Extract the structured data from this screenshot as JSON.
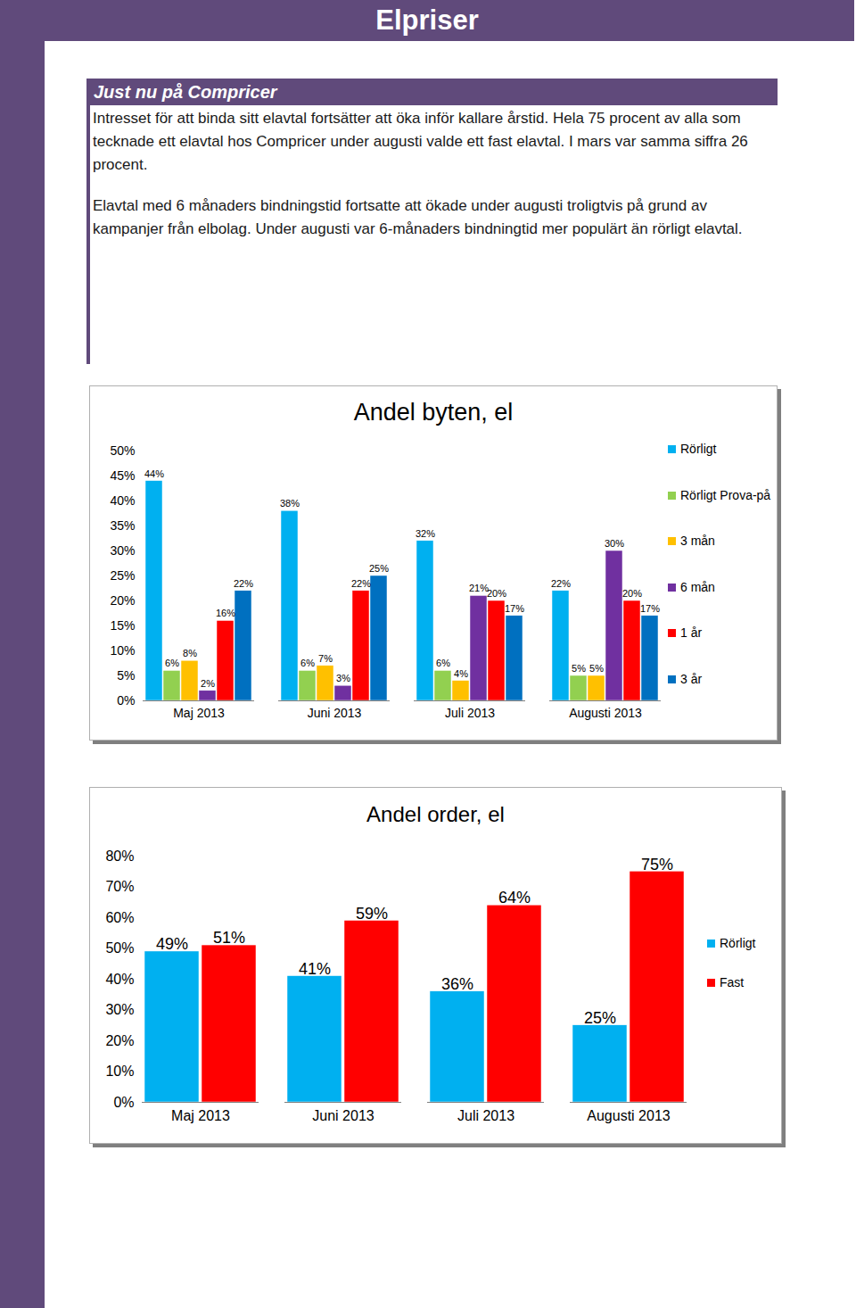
{
  "header": {
    "title": "Elpriser"
  },
  "section": {
    "title": "Just nu på Compricer",
    "paragraphs": [
      "Intresset för att binda sitt elavtal fortsätter att öka inför kallare årstid. Hela 75 procent av alla som tecknade ett elavtal hos Compricer under augusti valde ett fast elavtal. I mars var samma siffra 26 procent.",
      "Elavtal med 6 månaders bindningstid fortsatte att ökade under augusti troligtvis på grund av kampanjer från elbolag. Under augusti var 6-månaders bindningtid mer populärt än rörligt elavtal."
    ]
  },
  "chart_data": [
    {
      "type": "bar",
      "title": "Andel byten, el",
      "categories": [
        "Maj 2013",
        "Juni 2013",
        "Juli 2013",
        "Augusti 2013"
      ],
      "series": [
        {
          "name": "Rörligt",
          "color": "#00b0f0",
          "values": [
            44,
            38,
            32,
            22
          ],
          "value_labels": [
            "44%",
            "38%",
            "32%",
            "22%"
          ]
        },
        {
          "name": "Rörligt Prova-på",
          "color": "#92d050",
          "values": [
            6,
            6,
            6,
            5
          ],
          "value_labels": [
            "6%",
            "6%",
            "6%",
            "5%"
          ]
        },
        {
          "name": "3 mån",
          "color": "#ffc000",
          "values": [
            8,
            7,
            4,
            5
          ],
          "value_labels": [
            "8%",
            "7%",
            "4%",
            "5%"
          ]
        },
        {
          "name": "6 mån",
          "color": "#7030a0",
          "values": [
            2,
            3,
            21,
            30
          ],
          "value_labels": [
            "2%",
            "3%",
            "21%",
            "30%"
          ]
        },
        {
          "name": "1 år",
          "color": "#ff0000",
          "values": [
            16,
            22,
            20,
            20
          ],
          "value_labels": [
            "16%",
            "22%",
            "20%",
            "20%"
          ]
        },
        {
          "name": "3 år",
          "color": "#0070c0",
          "values": [
            22,
            25,
            17,
            17
          ],
          "value_labels": [
            "22%",
            "25%",
            "17%",
            "17%"
          ]
        }
      ],
      "ylim": [
        0,
        50
      ],
      "yticks": [
        {
          "value": 0,
          "label": "0%"
        },
        {
          "value": 5,
          "label": "5%"
        },
        {
          "value": 10,
          "label": "10%"
        },
        {
          "value": 15,
          "label": "15%"
        },
        {
          "value": 20,
          "label": "20%"
        },
        {
          "value": 25,
          "label": "25%"
        },
        {
          "value": 30,
          "label": "30%"
        },
        {
          "value": 35,
          "label": "35%"
        },
        {
          "value": 40,
          "label": "40%"
        },
        {
          "value": 45,
          "label": "45%"
        },
        {
          "value": 50,
          "label": "50%"
        }
      ],
      "data_labels": true,
      "legend": "right"
    },
    {
      "type": "bar",
      "title": "Andel order, el",
      "categories": [
        "Maj 2013",
        "Juni 2013",
        "Juli 2013",
        "Augusti 2013"
      ],
      "series": [
        {
          "name": "Rörligt",
          "color": "#00b0f0",
          "values": [
            49,
            41,
            36,
            25
          ],
          "value_labels": [
            "49%",
            "41%",
            "36%",
            "25%"
          ]
        },
        {
          "name": "Fast",
          "color": "#ff0000",
          "values": [
            51,
            59,
            64,
            75
          ],
          "value_labels": [
            "51%",
            "59%",
            "64%",
            "75%"
          ]
        }
      ],
      "ylim": [
        0,
        80
      ],
      "yticks": [
        {
          "value": 0,
          "label": "0%"
        },
        {
          "value": 10,
          "label": "10%"
        },
        {
          "value": 20,
          "label": "20%"
        },
        {
          "value": 30,
          "label": "30%"
        },
        {
          "value": 40,
          "label": "40%"
        },
        {
          "value": 50,
          "label": "50%"
        },
        {
          "value": 60,
          "label": "60%"
        },
        {
          "value": 70,
          "label": "70%"
        },
        {
          "value": 80,
          "label": "80%"
        }
      ],
      "data_labels": true,
      "legend": "right"
    }
  ]
}
